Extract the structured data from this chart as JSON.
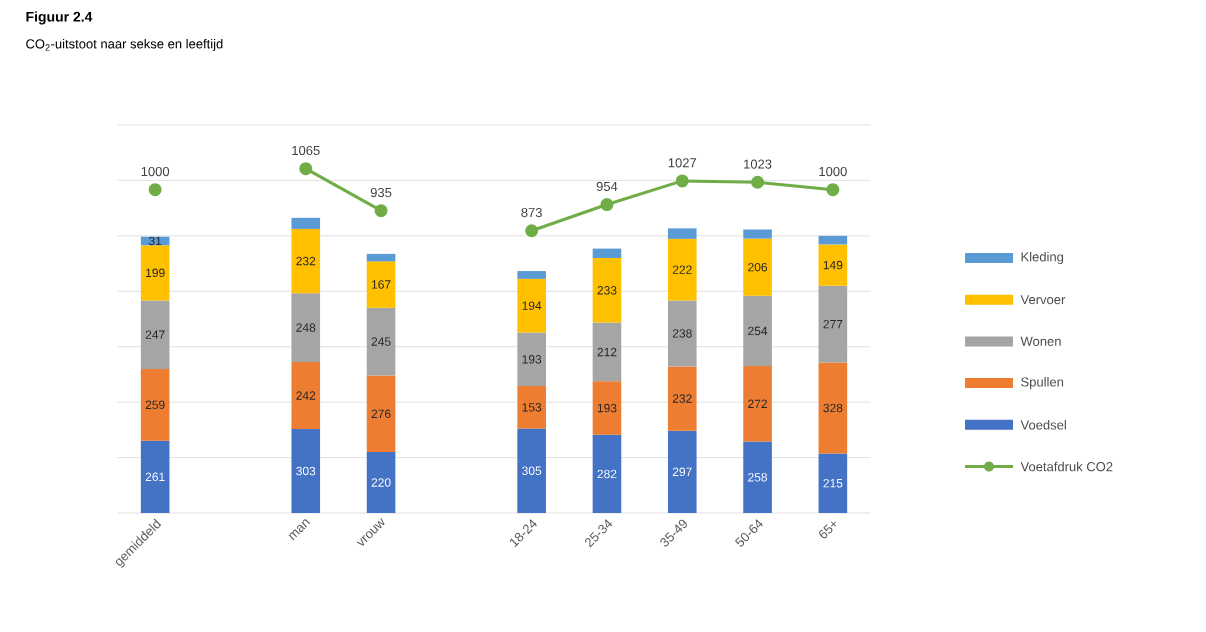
{
  "chart_data": {
    "type": "bar",
    "stacked": true,
    "title": "**Figuur 2.4**",
    "subtitle": "CO$_{2}$-uitstoot naar sekse en leeftijd",
    "categories": [
      "gemiddeld",
      null,
      "man",
      "vrouw",
      null,
      "18-24",
      "25-34",
      "35-49",
      "50-64",
      "65+"
    ],
    "series": [
      {
        "name": "Voedsel",
        "color": "#4472c4",
        "values": [
          261,
          null,
          303,
          220,
          null,
          305,
          282,
          297,
          258,
          215
        ],
        "value_labels": [
          "261",
          null,
          "303",
          "220",
          null,
          "305",
          "282",
          "297",
          "258",
          "215"
        ]
      },
      {
        "name": "Spullen",
        "color": "#ed7d31",
        "values": [
          259,
          null,
          242,
          276,
          null,
          153,
          193,
          232,
          272,
          328
        ],
        "value_labels": [
          "259",
          null,
          "242",
          "276",
          null,
          "153",
          "193",
          "232",
          "272",
          "328"
        ]
      },
      {
        "name": "Wonen",
        "color": "#a5a5a5",
        "values": [
          247,
          null,
          248,
          245,
          null,
          193,
          212,
          238,
          254,
          277
        ],
        "value_labels": [
          "247",
          null,
          "248",
          "245",
          null,
          "193",
          "212",
          "238",
          "254",
          "277"
        ]
      },
      {
        "name": "Vervoer",
        "color": "#ffc000",
        "values": [
          199,
          null,
          232,
          167,
          null,
          194,
          233,
          222,
          206,
          149
        ],
        "value_labels": [
          "199",
          null,
          "232",
          "167",
          null,
          "194",
          "233",
          "222",
          "206",
          "149"
        ]
      },
      {
        "name": "Kleding",
        "color": "#5b9bd5",
        "values": [
          31,
          null,
          40,
          27,
          null,
          28,
          34,
          38,
          33,
          31
        ],
        "value_labels": [
          "31",
          null,
          null,
          null,
          null,
          null,
          null,
          null,
          null,
          null
        ]
      },
      {
        "name": "Voetafdruk CO2",
        "type": "line",
        "axis": "y2",
        "marker": "circle",
        "color": "#70ad47",
        "values": [
          1000,
          null,
          1065,
          935,
          null,
          873,
          954,
          1027,
          1023,
          1000
        ],
        "value_labels": [
          "1000",
          null,
          "1065",
          "935",
          null,
          "873",
          "954",
          "1027",
          "1023",
          "1000"
        ]
      }
    ],
    "ylim": [
      0,
      1400
    ],
    "yticks": [
      {
        "value": 0,
        "label": null
      },
      {
        "value": 200,
        "label": null
      },
      {
        "value": 400,
        "label": null
      },
      {
        "value": 600,
        "label": null
      },
      {
        "value": 800,
        "label": null
      },
      {
        "value": 1000,
        "label": null
      },
      {
        "value": 1200,
        "label": null
      },
      {
        "value": 1400,
        "label": null
      }
    ],
    "y2lim": [
      0,
      1200
    ],
    "tick_labels": "x",
    "grid": "y",
    "legend": "right"
  }
}
